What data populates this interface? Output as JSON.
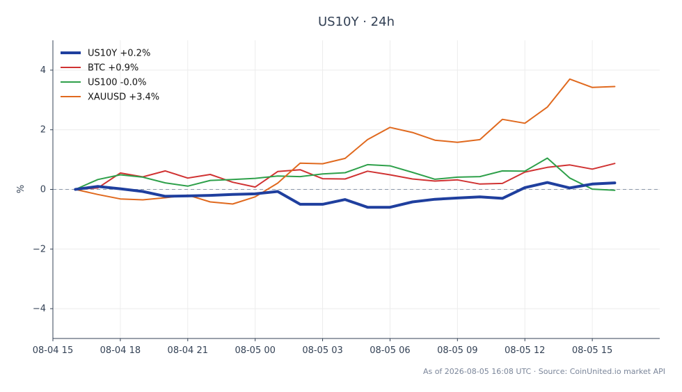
{
  "chart_data": {
    "type": "line",
    "title": "US10Y · 24h",
    "xlabel": "",
    "ylabel": "%",
    "ylim": [
      -5,
      5
    ],
    "yticks": [
      -4,
      -2,
      0,
      2,
      4
    ],
    "ytick_labels": [
      "−4",
      "−2",
      "0",
      "2",
      "4"
    ],
    "xlim": [
      "2026-08-04 15:00",
      "2026-08-05 18:00"
    ],
    "x_tick_labels": [
      "08-04 15",
      "08-04 18",
      "08-04 21",
      "08-05 00",
      "08-05 03",
      "08-05 06",
      "08-05 09",
      "08-05 12",
      "08-05 15"
    ],
    "x_tick_values": [
      "2026-08-04 15:00",
      "2026-08-04 18:00",
      "2026-08-04 21:00",
      "2026-08-05 00:00",
      "2026-08-05 03:00",
      "2026-08-05 06:00",
      "2026-08-05 09:00",
      "2026-08-05 12:00",
      "2026-08-05 15:00"
    ],
    "grid": true,
    "zero_line": true,
    "legend_position": "top-left",
    "x": [
      "2026-08-04 16:00",
      "2026-08-04 17:00",
      "2026-08-04 18:00",
      "2026-08-04 19:00",
      "2026-08-04 20:00",
      "2026-08-04 21:00",
      "2026-08-04 22:00",
      "2026-08-04 23:00",
      "2026-08-05 00:00",
      "2026-08-05 01:00",
      "2026-08-05 02:00",
      "2026-08-05 03:00",
      "2026-08-05 04:00",
      "2026-08-05 05:00",
      "2026-08-05 06:00",
      "2026-08-05 07:00",
      "2026-08-05 08:00",
      "2026-08-05 09:00",
      "2026-08-05 10:00",
      "2026-08-05 11:00",
      "2026-08-05 12:00",
      "2026-08-05 13:00",
      "2026-08-05 14:00",
      "2026-08-05 15:00",
      "2026-08-05 16:00"
    ],
    "series": [
      {
        "name": "US10Y +0.2%",
        "color": "#1f3f9e",
        "width": 4,
        "values": [
          0.0,
          0.1,
          0.02,
          -0.07,
          -0.23,
          -0.22,
          -0.2,
          -0.17,
          -0.15,
          -0.07,
          -0.5,
          -0.5,
          -0.34,
          -0.6,
          -0.6,
          -0.42,
          -0.33,
          -0.29,
          -0.25,
          -0.3,
          0.06,
          0.23,
          0.05,
          0.18,
          0.22
        ]
      },
      {
        "name": "BTC +0.9%",
        "color": "#d03232",
        "width": 2,
        "values": [
          0.0,
          0.05,
          0.55,
          0.42,
          0.62,
          0.38,
          0.5,
          0.24,
          0.08,
          0.6,
          0.66,
          0.36,
          0.35,
          0.61,
          0.49,
          0.35,
          0.28,
          0.32,
          0.18,
          0.2,
          0.58,
          0.74,
          0.82,
          0.68,
          0.87
        ]
      },
      {
        "name": "US100 -0.0%",
        "color": "#2ea04a",
        "width": 2,
        "values": [
          0.0,
          0.33,
          0.49,
          0.41,
          0.22,
          0.11,
          0.3,
          0.33,
          0.37,
          0.45,
          0.43,
          0.52,
          0.56,
          0.83,
          0.79,
          0.57,
          0.34,
          0.41,
          0.43,
          0.62,
          0.61,
          1.05,
          0.38,
          0.01,
          -0.03
        ]
      },
      {
        "name": "XAUUSD +3.4%",
        "color": "#e0691e",
        "width": 2,
        "values": [
          0.0,
          -0.17,
          -0.32,
          -0.35,
          -0.28,
          -0.19,
          -0.42,
          -0.49,
          -0.25,
          0.21,
          0.88,
          0.86,
          1.04,
          1.67,
          2.08,
          1.91,
          1.65,
          1.58,
          1.67,
          2.35,
          2.22,
          2.76,
          3.7,
          3.42,
          3.45
        ]
      }
    ]
  },
  "footer": {
    "text": "As of 2026-08-05 16:08 UTC · Source: CoinUnited.io market API"
  }
}
